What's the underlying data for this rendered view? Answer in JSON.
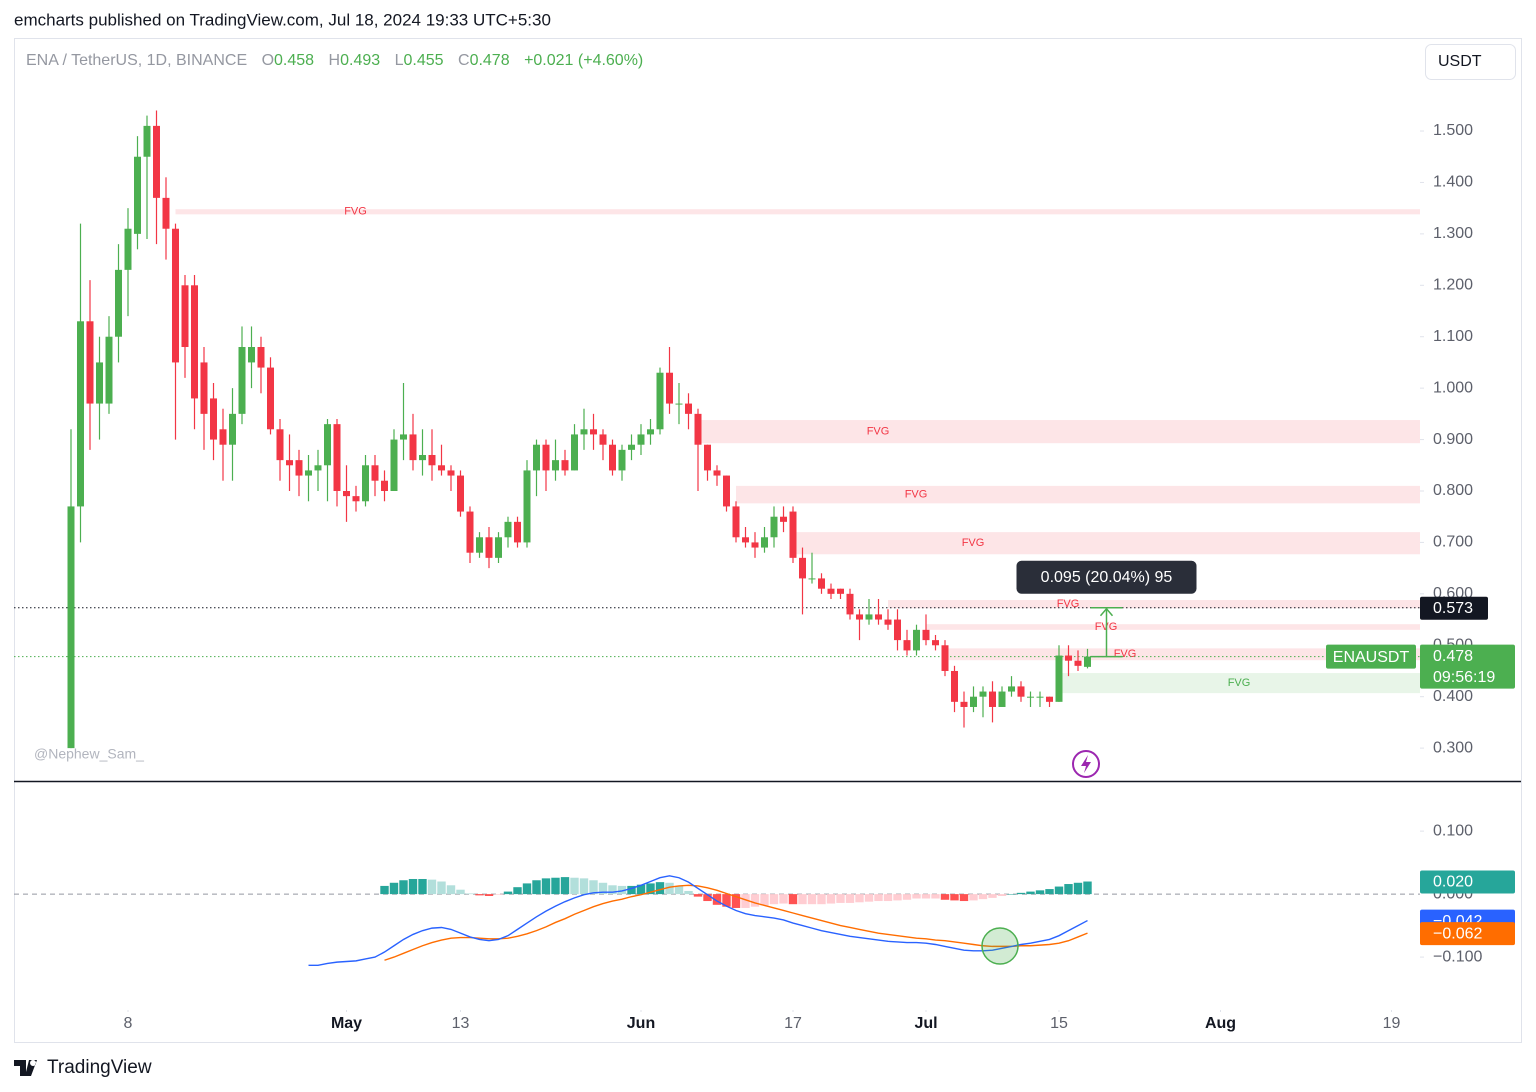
{
  "header": {
    "publisher": "emcharts published on TradingView.com, Jul 18, 2024 19:33 UTC+5:30",
    "brand": "TradingView",
    "watermark": "@Nephew_Sam_",
    "currency": "USDT"
  },
  "chart_data": {
    "type": "candlestick",
    "title": "ENA / TetherUS, 1D, BINANCE",
    "ohlc_letters": [
      "O",
      "H",
      "L",
      "C"
    ],
    "change": "+0.021 (+4.60%)",
    "symbol": "ENAUSDT",
    "countdown": "09:56:19",
    "up_color": "#4caf50",
    "down_color": "#f23645",
    "x": [
      "2024-04-02",
      "2024-04-03",
      "2024-04-04",
      "2024-04-05",
      "2024-04-06",
      "2024-04-07",
      "2024-04-08",
      "2024-04-09",
      "2024-04-10",
      "2024-04-11",
      "2024-04-12",
      "2024-04-13",
      "2024-04-14",
      "2024-04-15",
      "2024-04-16",
      "2024-04-17",
      "2024-04-18",
      "2024-04-19",
      "2024-04-20",
      "2024-04-21",
      "2024-04-22",
      "2024-04-23",
      "2024-04-24",
      "2024-04-25",
      "2024-04-26",
      "2024-04-27",
      "2024-04-28",
      "2024-04-29",
      "2024-04-30",
      "2024-05-01",
      "2024-05-02",
      "2024-05-03",
      "2024-05-04",
      "2024-05-05",
      "2024-05-06",
      "2024-05-07",
      "2024-05-08",
      "2024-05-09",
      "2024-05-10",
      "2024-05-11",
      "2024-05-12",
      "2024-05-13",
      "2024-05-14",
      "2024-05-15",
      "2024-05-16",
      "2024-05-17",
      "2024-05-18",
      "2024-05-19",
      "2024-05-20",
      "2024-05-21",
      "2024-05-22",
      "2024-05-23",
      "2024-05-24",
      "2024-05-25",
      "2024-05-26",
      "2024-05-27",
      "2024-05-28",
      "2024-05-29",
      "2024-05-30",
      "2024-05-31",
      "2024-06-01",
      "2024-06-02",
      "2024-06-03",
      "2024-06-04",
      "2024-06-05",
      "2024-06-06",
      "2024-06-07",
      "2024-06-08",
      "2024-06-09",
      "2024-06-10",
      "2024-06-11",
      "2024-06-12",
      "2024-06-13",
      "2024-06-14",
      "2024-06-15",
      "2024-06-16",
      "2024-06-17",
      "2024-06-18",
      "2024-06-19",
      "2024-06-20",
      "2024-06-21",
      "2024-06-22",
      "2024-06-23",
      "2024-06-24",
      "2024-06-25",
      "2024-06-26",
      "2024-06-27",
      "2024-06-28",
      "2024-06-29",
      "2024-06-30",
      "2024-07-01",
      "2024-07-02",
      "2024-07-03",
      "2024-07-04",
      "2024-07-05",
      "2024-07-06",
      "2024-07-07",
      "2024-07-08",
      "2024-07-09",
      "2024-07-10",
      "2024-07-11",
      "2024-07-12",
      "2024-07-13",
      "2024-07-14",
      "2024-07-15",
      "2024-07-16",
      "2024-07-17",
      "2024-07-18"
    ],
    "open": [
      0.3,
      0.77,
      1.13,
      0.97,
      0.97,
      1.1,
      1.23,
      1.3,
      1.45,
      1.51,
      1.37,
      1.31,
      1.2,
      1.2,
      1.05,
      0.98,
      0.92,
      0.89,
      0.95,
      1.05,
      1.08,
      1.04,
      0.92,
      0.86,
      0.86,
      0.83,
      0.84,
      0.85,
      0.93,
      0.8,
      0.79,
      0.78,
      0.85,
      0.82,
      0.8,
      0.9,
      0.91,
      0.86,
      0.87,
      0.85,
      0.84,
      0.83,
      0.76,
      0.68,
      0.71,
      0.67,
      0.71,
      0.74,
      0.7,
      0.84,
      0.89,
      0.84,
      0.86,
      0.84,
      0.91,
      0.92,
      0.91,
      0.89,
      0.84,
      0.88,
      0.89,
      0.91,
      0.92,
      1.03,
      0.97,
      0.97,
      0.95,
      0.89,
      0.84,
      0.83,
      0.77,
      0.71,
      0.7,
      0.69,
      0.71,
      0.75,
      0.76,
      0.67,
      0.63,
      0.63,
      0.61,
      0.61,
      0.6,
      0.56,
      0.55,
      0.56,
      0.55,
      0.55,
      0.51,
      0.49,
      0.53,
      0.51,
      0.5,
      0.45,
      0.39,
      0.38,
      0.4,
      0.41,
      0.38,
      0.41,
      0.42,
      0.4,
      0.4,
      0.4,
      0.39,
      0.48,
      0.47,
      0.458
    ],
    "high": [
      0.92,
      1.32,
      1.21,
      1.1,
      1.14,
      1.28,
      1.35,
      1.49,
      1.53,
      1.54,
      1.41,
      1.32,
      1.22,
      1.22,
      1.08,
      1.01,
      0.96,
      1.0,
      1.12,
      1.12,
      1.1,
      1.06,
      0.94,
      0.91,
      0.88,
      0.87,
      0.88,
      0.94,
      0.94,
      0.85,
      0.81,
      0.87,
      0.87,
      0.84,
      0.92,
      1.01,
      0.95,
      0.92,
      0.92,
      0.89,
      0.85,
      0.84,
      0.77,
      0.72,
      0.73,
      0.72,
      0.75,
      0.75,
      0.86,
      0.9,
      0.9,
      0.9,
      0.88,
      0.93,
      0.96,
      0.95,
      0.92,
      0.9,
      0.89,
      0.91,
      0.93,
      0.94,
      1.04,
      1.08,
      1.01,
      0.99,
      0.96,
      0.89,
      0.85,
      0.83,
      0.78,
      0.73,
      0.72,
      0.73,
      0.77,
      0.77,
      0.77,
      0.69,
      0.68,
      0.64,
      0.62,
      0.61,
      0.61,
      0.57,
      0.59,
      0.59,
      0.57,
      0.57,
      0.53,
      0.54,
      0.56,
      0.52,
      0.51,
      0.46,
      0.41,
      0.42,
      0.42,
      0.43,
      0.42,
      0.44,
      0.43,
      0.41,
      0.41,
      0.4,
      0.5,
      0.5,
      0.49,
      0.493
    ],
    "low": [
      0.3,
      0.7,
      0.88,
      0.9,
      0.95,
      1.05,
      1.14,
      1.27,
      1.29,
      1.28,
      1.25,
      0.9,
      1.02,
      0.92,
      0.88,
      0.86,
      0.82,
      0.82,
      0.93,
      1.0,
      0.99,
      0.91,
      0.82,
      0.8,
      0.79,
      0.78,
      0.8,
      0.78,
      0.77,
      0.74,
      0.76,
      0.77,
      0.79,
      0.78,
      0.8,
      0.86,
      0.84,
      0.83,
      0.82,
      0.83,
      0.8,
      0.75,
      0.66,
      0.67,
      0.65,
      0.66,
      0.69,
      0.69,
      0.69,
      0.79,
      0.8,
      0.82,
      0.83,
      0.84,
      0.88,
      0.88,
      0.86,
      0.83,
      0.82,
      0.86,
      0.87,
      0.89,
      0.91,
      0.95,
      0.93,
      0.92,
      0.8,
      0.82,
      0.81,
      0.76,
      0.7,
      0.69,
      0.67,
      0.68,
      0.69,
      0.72,
      0.66,
      0.56,
      0.62,
      0.6,
      0.59,
      0.59,
      0.55,
      0.51,
      0.54,
      0.54,
      0.53,
      0.49,
      0.48,
      0.48,
      0.5,
      0.49,
      0.44,
      0.37,
      0.34,
      0.37,
      0.36,
      0.35,
      0.38,
      0.4,
      0.39,
      0.38,
      0.38,
      0.38,
      0.39,
      0.44,
      0.45,
      0.455
    ],
    "close": [
      0.77,
      1.13,
      0.97,
      1.05,
      1.1,
      1.23,
      1.31,
      1.45,
      1.51,
      1.37,
      1.31,
      1.05,
      1.08,
      0.98,
      0.95,
      0.9,
      0.89,
      0.95,
      1.08,
      1.08,
      1.04,
      0.92,
      0.86,
      0.85,
      0.83,
      0.84,
      0.85,
      0.93,
      0.8,
      0.79,
      0.78,
      0.85,
      0.82,
      0.8,
      0.9,
      0.91,
      0.86,
      0.87,
      0.85,
      0.84,
      0.83,
      0.76,
      0.68,
      0.71,
      0.67,
      0.71,
      0.74,
      0.7,
      0.84,
      0.89,
      0.84,
      0.86,
      0.84,
      0.91,
      0.92,
      0.91,
      0.89,
      0.84,
      0.88,
      0.89,
      0.91,
      0.92,
      1.03,
      0.97,
      0.97,
      0.95,
      0.89,
      0.84,
      0.83,
      0.77,
      0.71,
      0.7,
      0.69,
      0.71,
      0.75,
      0.74,
      0.67,
      0.63,
      0.63,
      0.61,
      0.6,
      0.6,
      0.56,
      0.55,
      0.56,
      0.55,
      0.54,
      0.51,
      0.49,
      0.53,
      0.51,
      0.5,
      0.45,
      0.39,
      0.38,
      0.4,
      0.41,
      0.38,
      0.41,
      0.42,
      0.4,
      0.4,
      0.4,
      0.39,
      0.48,
      0.47,
      0.46,
      0.478
    ],
    "xlim": [
      "2024-03-27",
      "2024-08-22"
    ],
    "xticks": [
      {
        "value": "2024-04-08",
        "label": "8"
      },
      {
        "value": "2024-05-01",
        "label": "May"
      },
      {
        "value": "2024-05-13",
        "label": "13"
      },
      {
        "value": "2024-06-01",
        "label": "Jun"
      },
      {
        "value": "2024-06-17",
        "label": "17"
      },
      {
        "value": "2024-07-01",
        "label": "Jul"
      },
      {
        "value": "2024-07-15",
        "label": "15"
      },
      {
        "value": "2024-08-01",
        "label": "Aug"
      },
      {
        "value": "2024-08-19",
        "label": "19"
      }
    ],
    "ylim": [
      0.238,
      1.677
    ],
    "yticks": [
      {
        "value": 0.3,
        "label": "0.300"
      },
      {
        "value": 0.4,
        "label": "0.400"
      },
      {
        "value": 0.5,
        "label": "0.500"
      },
      {
        "value": 0.6,
        "label": "0.600"
      },
      {
        "value": 0.7,
        "label": "0.700"
      },
      {
        "value": 0.8,
        "label": "0.800"
      },
      {
        "value": 0.9,
        "label": "0.900"
      },
      {
        "value": 1.0,
        "label": "1.000"
      },
      {
        "value": 1.1,
        "label": "1.100"
      },
      {
        "value": 1.2,
        "label": "1.200"
      },
      {
        "value": 1.3,
        "label": "1.300"
      },
      {
        "value": 1.4,
        "label": "1.400"
      },
      {
        "value": 1.5,
        "label": "1.500"
      }
    ],
    "zones": [
      {
        "label": "FVG",
        "start": "2024-04-13",
        "top": 1.348,
        "bottom": 1.338,
        "color": "#f23645"
      },
      {
        "label": "FVG",
        "start": "2024-06-07",
        "top": 0.938,
        "bottom": 0.893,
        "color": "#f23645"
      },
      {
        "label": "FVG",
        "start": "2024-06-11",
        "top": 0.81,
        "bottom": 0.776,
        "color": "#f23645"
      },
      {
        "label": "FVG",
        "start": "2024-06-17",
        "top": 0.72,
        "bottom": 0.677,
        "color": "#f23645"
      },
      {
        "label": "FVG",
        "start": "2024-06-27",
        "top": 0.588,
        "bottom": 0.572,
        "color": "#f23645"
      },
      {
        "label": "FVG",
        "start": "2024-07-01",
        "top": 0.541,
        "bottom": 0.53,
        "color": "#f23645"
      },
      {
        "label": "FVG",
        "start": "2024-07-03",
        "top": 0.494,
        "bottom": 0.471,
        "color": "#f23645"
      },
      {
        "label": "FVG",
        "start": "2024-07-15",
        "top": 0.446,
        "bottom": 0.407,
        "color": "#4caf50"
      }
    ],
    "measure": {
      "label": "0.095 (20.04%) 95",
      "date": "2024-07-20",
      "from": 0.478,
      "to": 0.573
    },
    "macd": {
      "ylim": [
        -0.184,
        0.178
      ],
      "yticks": [
        {
          "value": 0.1,
          "label": "0.100"
        },
        {
          "value": 0,
          "label": "0.000"
        },
        {
          "value": -0.1,
          "label": "−0.100"
        }
      ],
      "histogram": {
        "colors": [
          "#26a69a",
          "#b2dfdb",
          "#ffcdd2",
          "#ff5252"
        ],
        "label_color": "#26a69a",
        "value_label": "0.020",
        "values": [
          null,
          null,
          null,
          null,
          null,
          null,
          null,
          null,
          null,
          null,
          null,
          null,
          null,
          null,
          null,
          null,
          null,
          null,
          null,
          null,
          null,
          null,
          null,
          null,
          null,
          null,
          null,
          null,
          null,
          null,
          null,
          null,
          null,
          0.013,
          0.018,
          0.022,
          0.024,
          0.024,
          0.023,
          0.02,
          0.014,
          0.007,
          0.001,
          -0.002,
          -0.003,
          -0.001,
          0.004,
          0.011,
          0.017,
          0.022,
          0.025,
          0.026,
          0.027,
          0.026,
          0.025,
          0.022,
          0.018,
          0.014,
          0.013,
          0.013,
          0.015,
          0.017,
          0.019,
          0.018,
          0.013,
          0.005,
          -0.004,
          -0.011,
          -0.017,
          -0.02,
          -0.022,
          -0.022,
          -0.02,
          -0.018,
          -0.016,
          -0.015,
          -0.016,
          -0.016,
          -0.016,
          -0.016,
          -0.015,
          -0.014,
          -0.014,
          -0.013,
          -0.012,
          -0.011,
          -0.011,
          -0.01,
          -0.009,
          -0.007,
          -0.007,
          -0.007,
          -0.009,
          -0.01,
          -0.011,
          -0.01,
          -0.008,
          -0.006,
          -0.003,
          0.0,
          0.002,
          0.004,
          0.006,
          0.008,
          0.012,
          0.016,
          0.018,
          0.02
        ]
      },
      "line": {
        "color": "#2962ff",
        "value_label": "−0.042",
        "values": [
          null,
          null,
          null,
          null,
          null,
          null,
          null,
          null,
          null,
          null,
          null,
          null,
          null,
          null,
          null,
          null,
          null,
          null,
          null,
          null,
          null,
          null,
          null,
          null,
          null,
          -0.113,
          -0.113,
          -0.11,
          -0.108,
          -0.107,
          -0.106,
          -0.103,
          -0.1,
          -0.092,
          -0.082,
          -0.072,
          -0.064,
          -0.058,
          -0.054,
          -0.053,
          -0.056,
          -0.062,
          -0.068,
          -0.072,
          -0.074,
          -0.072,
          -0.066,
          -0.056,
          -0.046,
          -0.036,
          -0.027,
          -0.019,
          -0.012,
          -0.006,
          -0.001,
          0.002,
          0.003,
          0.003,
          0.005,
          0.009,
          0.014,
          0.02,
          0.026,
          0.029,
          0.026,
          0.019,
          0.009,
          -0.001,
          -0.011,
          -0.019,
          -0.026,
          -0.031,
          -0.034,
          -0.036,
          -0.038,
          -0.041,
          -0.046,
          -0.05,
          -0.054,
          -0.058,
          -0.061,
          -0.064,
          -0.067,
          -0.069,
          -0.071,
          -0.073,
          -0.075,
          -0.076,
          -0.077,
          -0.077,
          -0.078,
          -0.08,
          -0.083,
          -0.086,
          -0.089,
          -0.09,
          -0.09,
          -0.089,
          -0.086,
          -0.083,
          -0.08,
          -0.078,
          -0.075,
          -0.072,
          -0.066,
          -0.058,
          -0.05,
          -0.042
        ]
      },
      "signal": {
        "color": "#ff6d00",
        "value_label": "−0.062",
        "values": [
          null,
          null,
          null,
          null,
          null,
          null,
          null,
          null,
          null,
          null,
          null,
          null,
          null,
          null,
          null,
          null,
          null,
          null,
          null,
          null,
          null,
          null,
          null,
          null,
          null,
          null,
          null,
          null,
          null,
          null,
          null,
          null,
          null,
          -0.105,
          -0.1,
          -0.094,
          -0.088,
          -0.082,
          -0.077,
          -0.073,
          -0.07,
          -0.069,
          -0.069,
          -0.07,
          -0.071,
          -0.071,
          -0.07,
          -0.067,
          -0.063,
          -0.058,
          -0.052,
          -0.045,
          -0.039,
          -0.032,
          -0.026,
          -0.02,
          -0.015,
          -0.011,
          -0.008,
          -0.004,
          -0.001,
          0.003,
          0.007,
          0.011,
          0.013,
          0.014,
          0.013,
          0.01,
          0.006,
          0.001,
          -0.004,
          -0.009,
          -0.014,
          -0.018,
          -0.022,
          -0.026,
          -0.03,
          -0.034,
          -0.038,
          -0.042,
          -0.046,
          -0.05,
          -0.053,
          -0.056,
          -0.059,
          -0.062,
          -0.064,
          -0.066,
          -0.068,
          -0.07,
          -0.071,
          -0.073,
          -0.074,
          -0.076,
          -0.078,
          -0.08,
          -0.082,
          -0.083,
          -0.083,
          -0.083,
          -0.082,
          -0.082,
          -0.081,
          -0.08,
          -0.078,
          -0.074,
          -0.068,
          -0.062
        ]
      }
    }
  }
}
